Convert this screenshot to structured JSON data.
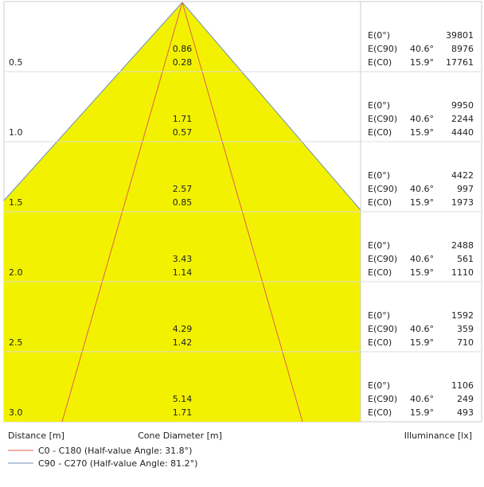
{
  "rows": [
    {
      "distance": "0.5",
      "diameter_c90": "0.86",
      "diameter_c0": "0.28",
      "e0": "39801",
      "e_c90": "8976",
      "e_c0": "17761"
    },
    {
      "distance": "1.0",
      "diameter_c90": "1.71",
      "diameter_c0": "0.57",
      "e0": "9950",
      "e_c90": "2244",
      "e_c0": "4440"
    },
    {
      "distance": "1.5",
      "diameter_c90": "2.57",
      "diameter_c0": "0.85",
      "e0": "4422",
      "e_c90": "997",
      "e_c0": "1973"
    },
    {
      "distance": "2.0",
      "diameter_c90": "3.43",
      "diameter_c0": "1.14",
      "e0": "2488",
      "e_c90": "561",
      "e_c0": "1110"
    },
    {
      "distance": "2.5",
      "diameter_c90": "4.29",
      "diameter_c0": "1.42",
      "e0": "1592",
      "e_c90": "359",
      "e_c0": "710"
    },
    {
      "distance": "3.0",
      "diameter_c90": "5.14",
      "diameter_c0": "1.71",
      "e0": "1106",
      "e_c90": "249",
      "e_c0": "493"
    }
  ],
  "labels": {
    "e0": "E(0°)",
    "e_c90": "E(C90)",
    "e_c0": "E(C0)"
  },
  "angles": {
    "c90": "40.6°",
    "c0": "15.9°"
  },
  "footer": {
    "distance": "Distance [m]",
    "diameter": "Cone Diameter [m]",
    "illuminance": "Illuminance [lx]"
  },
  "legend": [
    "C0 - C180 (Half-value Angle: 31.8°)",
    "C90 - C270 (Half-value Angle: 81.2°)"
  ]
}
